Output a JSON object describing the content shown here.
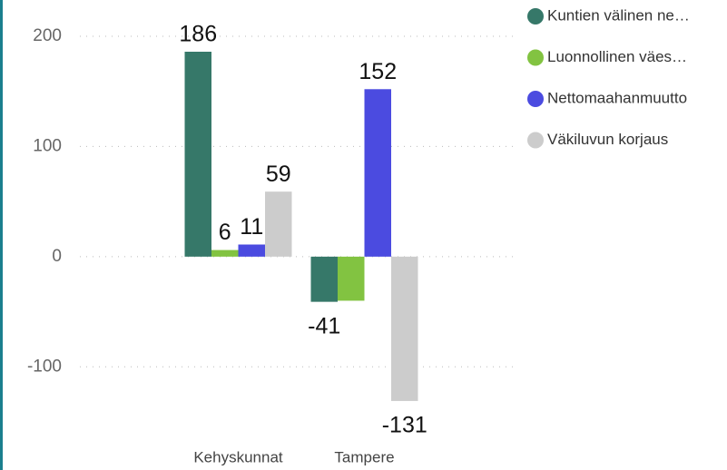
{
  "chart_data": {
    "type": "bar",
    "categories": [
      "Kehyskunnat",
      "Tampere"
    ],
    "series": [
      {
        "name": "Kuntien välinen ne…",
        "color": "#367869",
        "values": [
          186,
          -41
        ]
      },
      {
        "name": "Luonnollinen väes…",
        "color": "#82c341",
        "values": [
          6,
          -40
        ],
        "value_labels": [
          "6",
          null
        ]
      },
      {
        "name": "Nettomaahanmuutto",
        "color": "#4b4be0",
        "values": [
          11,
          152
        ]
      },
      {
        "name": "Väkiluvun korjaus",
        "color": "#cccccc",
        "values": [
          59,
          -131
        ]
      }
    ],
    "ylim": [
      -150,
      200
    ],
    "yticks": [
      -100,
      0,
      100,
      200
    ],
    "grid": true,
    "legend": "top-right"
  }
}
